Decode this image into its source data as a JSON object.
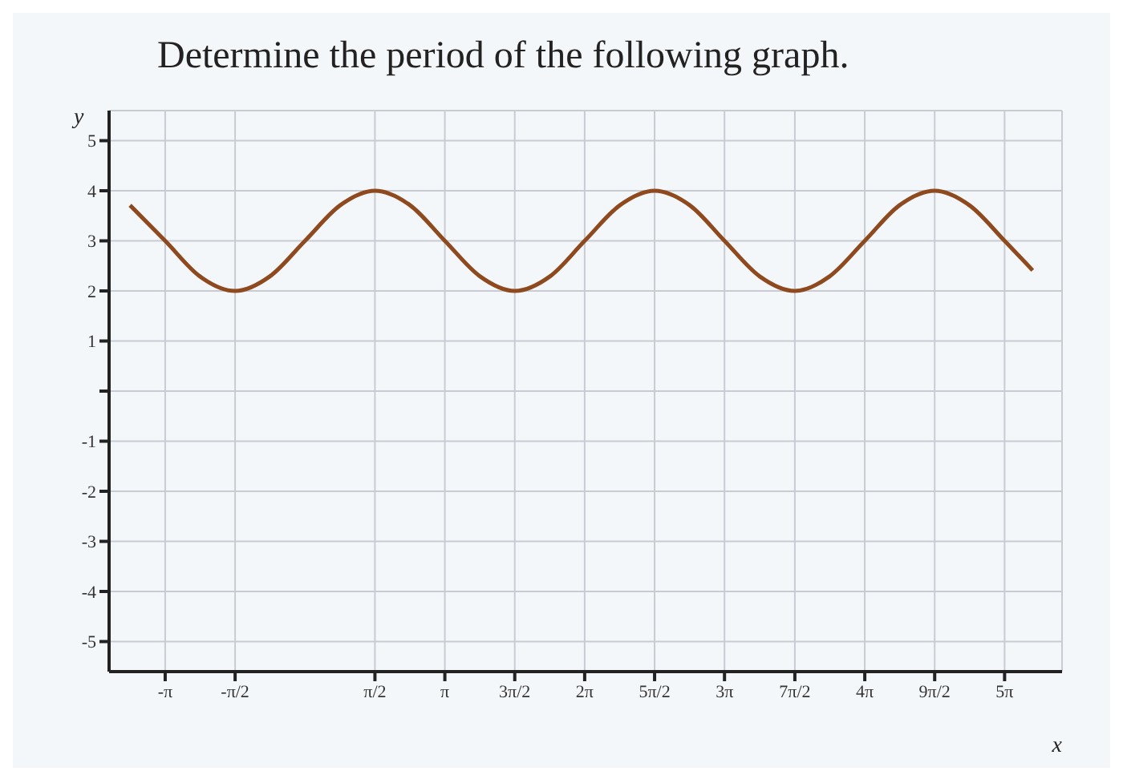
{
  "chart_data": {
    "type": "line",
    "title": "Determine the period of the following graph.",
    "xlabel": "x",
    "ylabel": "y",
    "x": [
      -3.93,
      -3.14,
      -2.36,
      -1.57,
      -0.79,
      0,
      0.79,
      1.57,
      2.36,
      3.14,
      3.93,
      4.71,
      5.5,
      6.28,
      7.07,
      7.85,
      8.64,
      9.42,
      10.21,
      11.0,
      11.78,
      12.57,
      13.35,
      14.14,
      14.92,
      15.71,
      16.34
    ],
    "series": [
      {
        "color": "#8e4a1e",
        "values": [
          3.71,
          3,
          2.29,
          2,
          2.29,
          3,
          3.71,
          4,
          3.71,
          3,
          2.29,
          2,
          2.29,
          3,
          3.71,
          4,
          3.71,
          3,
          2.29,
          2,
          2.29,
          3,
          3.71,
          4,
          3.71,
          3,
          2.41
        ]
      }
    ],
    "xlim": [
      -4.4,
      17
    ],
    "ylim": [
      -5.6,
      5.6
    ],
    "xticks": [
      {
        "value": -3.14,
        "label": "-π"
      },
      {
        "value": -1.57,
        "label": "-π/2"
      },
      {
        "value": 1.57,
        "label": "π/2"
      },
      {
        "value": 3.14,
        "label": "π"
      },
      {
        "value": 4.71,
        "label": "3π/2"
      },
      {
        "value": 6.28,
        "label": "2π"
      },
      {
        "value": 7.85,
        "label": "5π/2"
      },
      {
        "value": 9.42,
        "label": "3π"
      },
      {
        "value": 11.0,
        "label": "7π/2"
      },
      {
        "value": 12.57,
        "label": "4π"
      },
      {
        "value": 14.14,
        "label": "9π/2"
      },
      {
        "value": 15.71,
        "label": "5π"
      }
    ],
    "yticks": [
      -5,
      -4,
      -3,
      -2,
      -1,
      {
        "value": 0,
        "label": null
      },
      1,
      2,
      3,
      4,
      5
    ],
    "grid": true,
    "marker": "none",
    "line_style": "solid"
  }
}
